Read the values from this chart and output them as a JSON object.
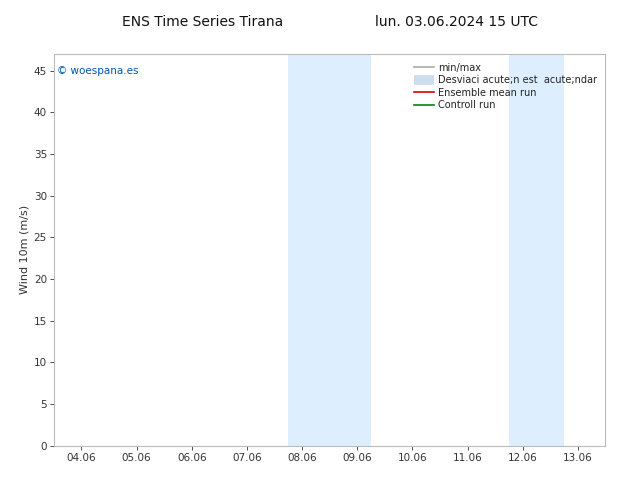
{
  "title_left": "ENS Time Series Tirana",
  "title_right": "lun. 03.06.2024 15 UTC",
  "ylabel": "Wind 10m (m/s)",
  "ylim": [
    0,
    47
  ],
  "yticks": [
    0,
    5,
    10,
    15,
    20,
    25,
    30,
    35,
    40,
    45
  ],
  "xtick_labels": [
    "04.06",
    "05.06",
    "06.06",
    "07.06",
    "08.06",
    "09.06",
    "10.06",
    "11.06",
    "12.06",
    "13.06"
  ],
  "xlim": [
    -0.5,
    9.5
  ],
  "blue_bands_xdata": [
    [
      3.75,
      4.25
    ],
    [
      4.25,
      5.25
    ],
    [
      7.75,
      8.25
    ],
    [
      8.25,
      8.75
    ]
  ],
  "band_color": "#ddeeff",
  "watermark": "© woespana.es",
  "watermark_color": "#0055aa",
  "legend_label_minmax": "min/max",
  "legend_label_std": "Desviaci acute;n est  acute;ndar",
  "legend_label_ensemble": "Ensemble mean run",
  "legend_label_control": "Controll run",
  "legend_color_minmax": "#aaaaaa",
  "legend_color_std": "#ccddee",
  "legend_color_ensemble": "#dd0000",
  "legend_color_control": "#008800",
  "bg_color": "#ffffff",
  "plot_bg_color": "#ffffff",
  "spine_color": "#bbbbbb",
  "tick_color": "#333333",
  "title_fontsize": 10,
  "label_fontsize": 8,
  "tick_fontsize": 7.5,
  "legend_fontsize": 7
}
